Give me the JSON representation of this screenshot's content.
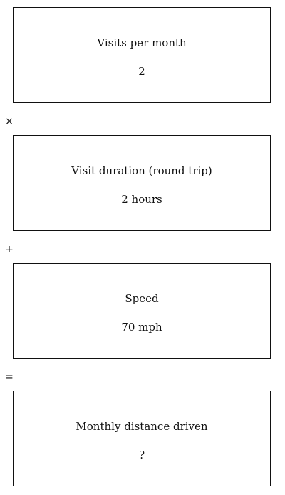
{
  "steps": [
    {
      "label": "Visits per month",
      "value": "2"
    },
    {
      "label": "Visit duration (round trip)",
      "value": "2 hours"
    },
    {
      "label": "Speed",
      "value": "70 mph"
    },
    {
      "label": "Monthly distance driven",
      "value": "?"
    }
  ],
  "operators": [
    "×",
    "+",
    "="
  ]
}
